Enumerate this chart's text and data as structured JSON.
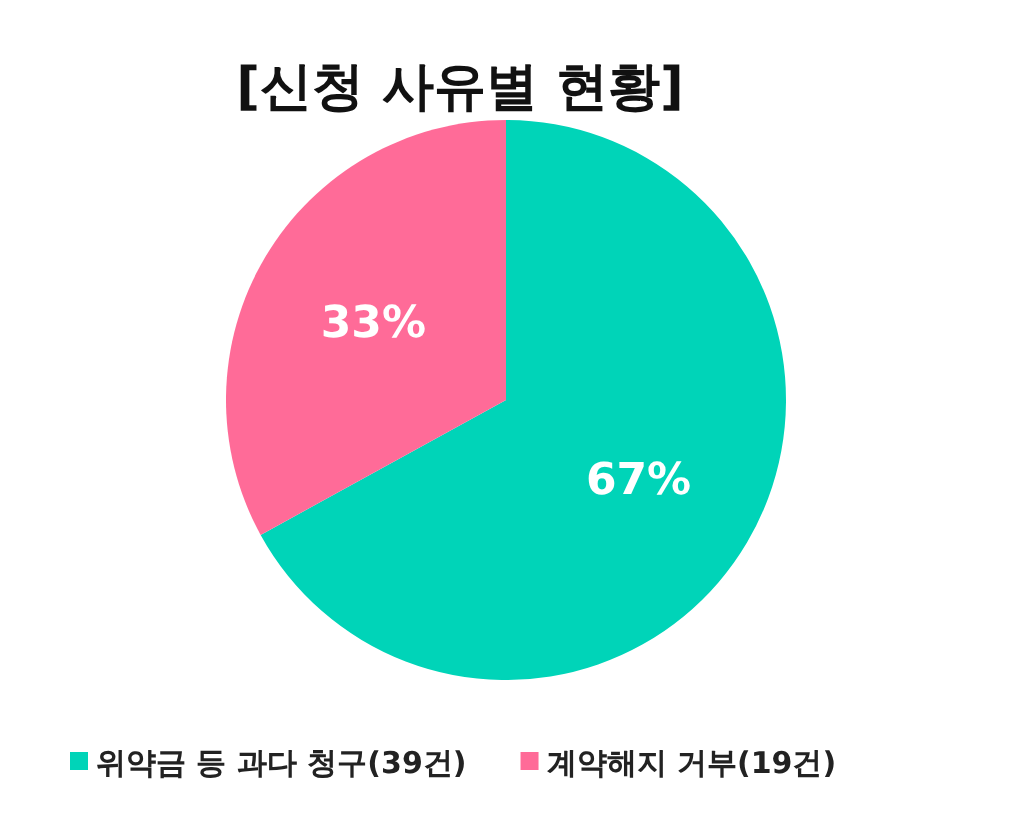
{
  "chart_data": {
    "type": "pie",
    "title": "[신청 사유별 현황]",
    "categories": [
      "위약금 등 과다 청구(39건)",
      "계약해지 거부(19건)"
    ],
    "values": [
      67,
      33
    ],
    "colors": [
      "#00d4b8",
      "#ff6b98"
    ],
    "value_labels": [
      "67%",
      "33%"
    ],
    "legend": "bottom"
  }
}
